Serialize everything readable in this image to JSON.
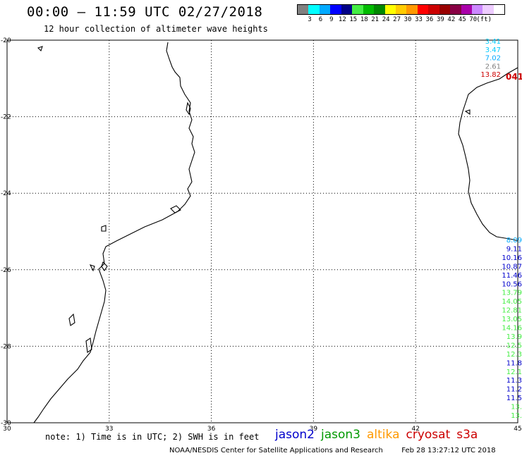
{
  "header": {
    "title": "00:00 – 11:59 UTC 02/27/2018",
    "subtitle": "12 hour collection of altimeter wave heights"
  },
  "legend": {
    "colors": [
      "#808080",
      "#00ffff",
      "#00aaff",
      "#0000ff",
      "#000088",
      "#44ee44",
      "#00bb00",
      "#008800",
      "#ffff00",
      "#ffcc00",
      "#ff9900",
      "#ff0000",
      "#cc0000",
      "#990000",
      "#880044",
      "#aa00aa",
      "#cc88ff",
      "#eeccff",
      "#ffffff"
    ],
    "labels": [
      "3",
      "6",
      "9",
      "12",
      "15",
      "18",
      "21",
      "24",
      "27",
      "30",
      "33",
      "36",
      "39",
      "42",
      "45",
      "70",
      "(ft)"
    ]
  },
  "axes": {
    "x_ticks": [
      30,
      33,
      36,
      39,
      42,
      45
    ],
    "y_ticks": [
      -20,
      -22,
      -24,
      -26,
      -28,
      -30
    ],
    "x_range": [
      30,
      45
    ],
    "y_range": [
      -30,
      -20
    ]
  },
  "readings_top": [
    {
      "value": "3.41",
      "color": "#00ccff"
    },
    {
      "value": "3.47",
      "color": "#00ccff"
    },
    {
      "value": "7.02",
      "color": "#00aaff"
    },
    {
      "value": "2.61",
      "color": "#808080"
    },
    {
      "value": "13.82",
      "color": "#cc0000"
    }
  ],
  "pass_time": {
    "value": "041",
    "color": "#cc0000"
  },
  "readings_bottom": [
    {
      "value": "8.09",
      "color": "#00aaff"
    },
    {
      "value": "9.11",
      "color": "#0000cc"
    },
    {
      "value": "10.16",
      "color": "#0000cc"
    },
    {
      "value": "10.87",
      "color": "#0000cc"
    },
    {
      "value": "11.46",
      "color": "#0000cc"
    },
    {
      "value": "10.56",
      "color": "#0000cc"
    },
    {
      "value": "13.79",
      "color": "#44ee44"
    },
    {
      "value": "14.05",
      "color": "#44ee44"
    },
    {
      "value": "12.81",
      "color": "#44ee44"
    },
    {
      "value": "13.05",
      "color": "#44ee44"
    },
    {
      "value": "14.16",
      "color": "#44ee44"
    },
    {
      "value": "13.9",
      "color": "#44ee44"
    },
    {
      "value": "12.5",
      "color": "#44ee44"
    },
    {
      "value": "12.3",
      "color": "#44ee44"
    },
    {
      "value": "11.8",
      "color": "#0000cc"
    },
    {
      "value": "12.1",
      "color": "#44ee44"
    },
    {
      "value": "11.3",
      "color": "#0000cc"
    },
    {
      "value": "11.2",
      "color": "#0000cc"
    },
    {
      "value": "11.5",
      "color": "#0000cc"
    },
    {
      "value": "13.",
      "color": "#44ee44"
    },
    {
      "value": "13.",
      "color": "#44ee44"
    }
  ],
  "footer": {
    "note": "note: 1) Time is in UTC; 2) SWH is in feet",
    "missions": [
      {
        "name": "jason2",
        "color": "#0000cc"
      },
      {
        "name": "jason3",
        "color": "#009900"
      },
      {
        "name": "altika",
        "color": "#ff9900"
      },
      {
        "name": "cryosat",
        "color": "#cc0000"
      },
      {
        "name": "s3a",
        "color": "#cc0000"
      }
    ],
    "credit": "NOAA/NESDIS Center for Satellite Applications and Research",
    "timestamp": "Feb 28 13:27:12 UTC 2018"
  }
}
